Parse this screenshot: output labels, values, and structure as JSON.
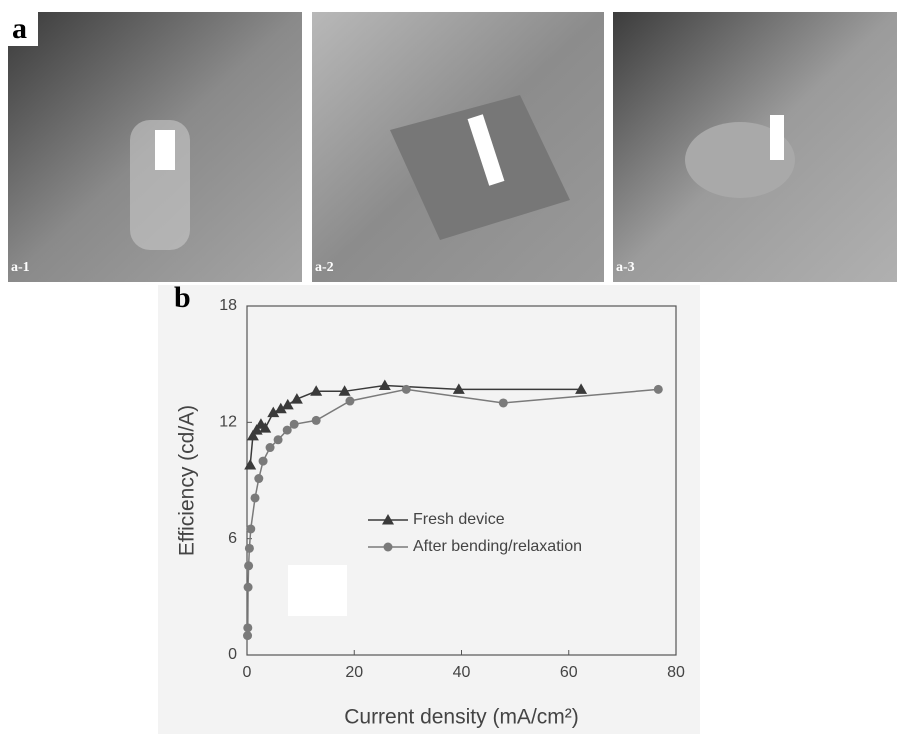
{
  "panels": {
    "a": "a",
    "a1": "a-1",
    "a2": "a-2",
    "a3": "a-3",
    "b": "b"
  },
  "chart_data": {
    "type": "line",
    "xlabel": "Current density (mA/cm²)",
    "ylabel": "Efficiency (cd/A)",
    "xlim": [
      0,
      80
    ],
    "xticks": [
      0,
      20,
      40,
      60,
      80
    ],
    "ylim": [
      0,
      18
    ],
    "yticks": [
      0,
      6,
      12,
      18
    ],
    "series": [
      {
        "name": "Fresh device",
        "color": "#3a3a3a",
        "marker": "triangle",
        "x": [
          0.6,
          1.1,
          1.8,
          2.6,
          3.4,
          4.9,
          6.3,
          7.6,
          9.3,
          12.9,
          18.2,
          25.7,
          39.5,
          62.3
        ],
        "values": [
          9.8,
          11.3,
          11.6,
          11.9,
          11.7,
          12.5,
          12.7,
          12.9,
          13.2,
          13.6,
          13.6,
          13.9,
          13.7,
          13.7
        ]
      },
      {
        "name": "After bending/relaxation",
        "color": "#7a7a7a",
        "marker": "circle",
        "x": [
          0.1,
          0.15,
          0.2,
          0.3,
          0.45,
          0.7,
          1.5,
          2.2,
          3.0,
          4.3,
          5.8,
          7.5,
          8.8,
          12.9,
          19.2,
          29.7,
          47.8,
          76.7
        ],
        "values": [
          1.0,
          1.4,
          3.5,
          4.6,
          5.5,
          6.5,
          8.1,
          9.1,
          10.0,
          10.7,
          11.1,
          11.6,
          11.9,
          12.1,
          13.1,
          13.7,
          13.0,
          13.7
        ]
      }
    ],
    "legend": "center"
  }
}
